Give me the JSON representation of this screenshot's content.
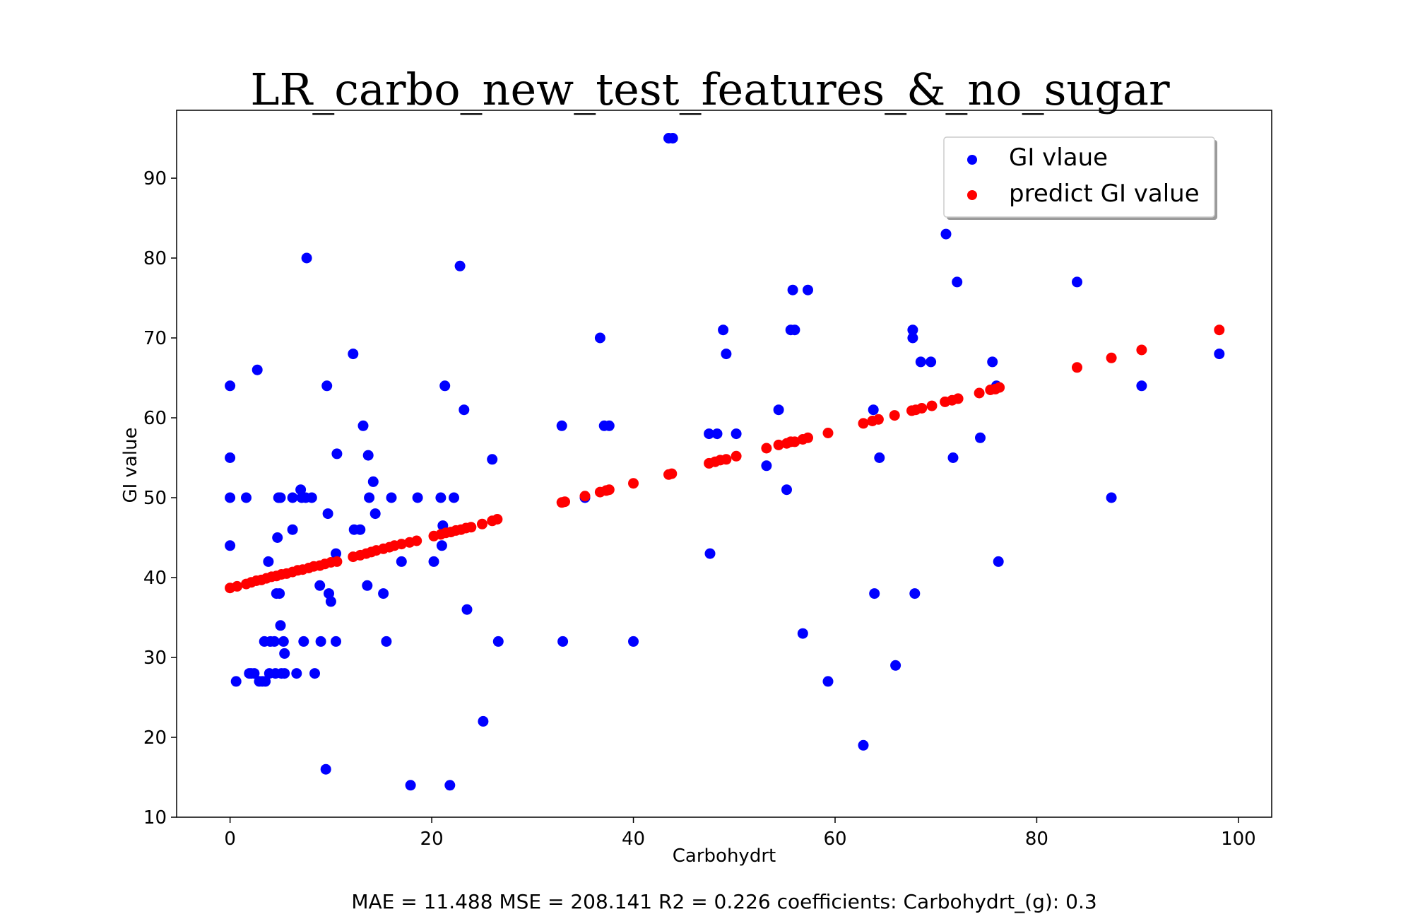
{
  "chart_data": {
    "type": "scatter",
    "title": "LR_carbo_new_test_features_&_no_sugar",
    "xlabel": "Carbohydrt",
    "ylabel": "GI value",
    "xlim": [
      -5.3,
      103.3
    ],
    "ylim": [
      10,
      98.5
    ],
    "xticks": [
      0,
      20,
      40,
      60,
      80,
      100
    ],
    "yticks": [
      10,
      20,
      30,
      40,
      50,
      60,
      70,
      80,
      90
    ],
    "grid": false,
    "legend_position": "top-right",
    "caption": "MAE = 11.488 MSE = 208.141 R2 = 0.226 coefficients: Carbohydrt_(g): 0.3",
    "series": [
      {
        "name": "GI vlaue",
        "color": "#0000ff",
        "points": [
          [
            0,
            64
          ],
          [
            0,
            55
          ],
          [
            0,
            50
          ],
          [
            0,
            44
          ],
          [
            0.6,
            27
          ],
          [
            1.6,
            50
          ],
          [
            1.9,
            28
          ],
          [
            2.1,
            28
          ],
          [
            2.4,
            28
          ],
          [
            2.7,
            66
          ],
          [
            2.9,
            27
          ],
          [
            3.2,
            27
          ],
          [
            3.4,
            32
          ],
          [
            3.5,
            27
          ],
          [
            3.8,
            42
          ],
          [
            3.9,
            28
          ],
          [
            4,
            32
          ],
          [
            4.4,
            32
          ],
          [
            4.5,
            28
          ],
          [
            4.6,
            38
          ],
          [
            4.7,
            45
          ],
          [
            4.8,
            50
          ],
          [
            4.9,
            38
          ],
          [
            5,
            50
          ],
          [
            5.1,
            28
          ],
          [
            5,
            34
          ],
          [
            5.3,
            32
          ],
          [
            5.4,
            30.5
          ],
          [
            5.4,
            28
          ],
          [
            6.2,
            50
          ],
          [
            6.2,
            46
          ],
          [
            6.6,
            28
          ],
          [
            7,
            51
          ],
          [
            7.1,
            50
          ],
          [
            7.3,
            32
          ],
          [
            7.6,
            80
          ],
          [
            7.5,
            50
          ],
          [
            8.1,
            50
          ],
          [
            8.4,
            28
          ],
          [
            8.9,
            39
          ],
          [
            9,
            32
          ],
          [
            9.6,
            64
          ],
          [
            9.5,
            16
          ],
          [
            9.7,
            48
          ],
          [
            9.8,
            38
          ],
          [
            10,
            37
          ],
          [
            10.5,
            43
          ],
          [
            10.6,
            55.5
          ],
          [
            10.5,
            32
          ],
          [
            12.2,
            68
          ],
          [
            12.3,
            46
          ],
          [
            12.9,
            46
          ],
          [
            13.2,
            59
          ],
          [
            13.6,
            39
          ],
          [
            13.7,
            55.3
          ],
          [
            13.8,
            50
          ],
          [
            14.2,
            52
          ],
          [
            14.4,
            48
          ],
          [
            15.2,
            38
          ],
          [
            15.5,
            32
          ],
          [
            16,
            50
          ],
          [
            17,
            42
          ],
          [
            17.9,
            14
          ],
          [
            18.6,
            50
          ],
          [
            20.2,
            42
          ],
          [
            20.9,
            50
          ],
          [
            21,
            44
          ],
          [
            21.1,
            46.5
          ],
          [
            21.3,
            64
          ],
          [
            21.8,
            14
          ],
          [
            22.2,
            50
          ],
          [
            22.8,
            79
          ],
          [
            23.2,
            61
          ],
          [
            23.5,
            36
          ],
          [
            25.1,
            22
          ],
          [
            26,
            54.8
          ],
          [
            26.6,
            32
          ],
          [
            32.9,
            59
          ],
          [
            33,
            32
          ],
          [
            35.2,
            50
          ],
          [
            36.7,
            70
          ],
          [
            37.1,
            59
          ],
          [
            37.6,
            59
          ],
          [
            40,
            32
          ],
          [
            43.5,
            95
          ],
          [
            43.9,
            95
          ],
          [
            47.5,
            58
          ],
          [
            47.6,
            43
          ],
          [
            48.3,
            58
          ],
          [
            48.9,
            71
          ],
          [
            49.2,
            68
          ],
          [
            50.2,
            58
          ],
          [
            53.2,
            54
          ],
          [
            54.4,
            61
          ],
          [
            55.2,
            51
          ],
          [
            55.6,
            71
          ],
          [
            55.8,
            76
          ],
          [
            56,
            71
          ],
          [
            56.8,
            33
          ],
          [
            57.3,
            76
          ],
          [
            59.3,
            27
          ],
          [
            62.8,
            19
          ],
          [
            63.8,
            61
          ],
          [
            63.9,
            38
          ],
          [
            64.4,
            55
          ],
          [
            66,
            29
          ],
          [
            67.7,
            71
          ],
          [
            67.7,
            70
          ],
          [
            67.9,
            38
          ],
          [
            68.5,
            67
          ],
          [
            69.5,
            67
          ],
          [
            71,
            83
          ],
          [
            71.7,
            55
          ],
          [
            72.1,
            77
          ],
          [
            74.4,
            57.5
          ],
          [
            75.6,
            67
          ],
          [
            76,
            64
          ],
          [
            76.2,
            42
          ],
          [
            84,
            77
          ],
          [
            87.4,
            50
          ],
          [
            90.4,
            64
          ],
          [
            98.1,
            68
          ]
        ]
      },
      {
        "name": "predict GI value",
        "color": "#ff0000",
        "points": [
          [
            0,
            38.7
          ],
          [
            0.7,
            38.9
          ],
          [
            1.6,
            39.2
          ],
          [
            2.1,
            39.4
          ],
          [
            2.6,
            39.6
          ],
          [
            3.1,
            39.7
          ],
          [
            3.6,
            39.9
          ],
          [
            4.1,
            40.1
          ],
          [
            4.6,
            40.2
          ],
          [
            5.1,
            40.4
          ],
          [
            5.6,
            40.5
          ],
          [
            6.2,
            40.7
          ],
          [
            6.7,
            40.9
          ],
          [
            7.2,
            41
          ],
          [
            7.8,
            41.2
          ],
          [
            8.3,
            41.4
          ],
          [
            8.9,
            41.5
          ],
          [
            9.4,
            41.7
          ],
          [
            10,
            41.9
          ],
          [
            10.6,
            42
          ],
          [
            12.2,
            42.6
          ],
          [
            12.9,
            42.8
          ],
          [
            13.5,
            43
          ],
          [
            14,
            43.2
          ],
          [
            14.5,
            43.4
          ],
          [
            15.2,
            43.6
          ],
          [
            15.8,
            43.8
          ],
          [
            16.3,
            44
          ],
          [
            17,
            44.2
          ],
          [
            17.8,
            44.4
          ],
          [
            18.5,
            44.6
          ],
          [
            20.2,
            45.2
          ],
          [
            20.9,
            45.4
          ],
          [
            21.4,
            45.6
          ],
          [
            21.9,
            45.7
          ],
          [
            22.4,
            45.9
          ],
          [
            22.9,
            46
          ],
          [
            23.4,
            46.2
          ],
          [
            23.9,
            46.3
          ],
          [
            25,
            46.7
          ],
          [
            26,
            47.1
          ],
          [
            26.5,
            47.3
          ],
          [
            32.9,
            49.4
          ],
          [
            33.2,
            49.5
          ],
          [
            35.2,
            50.2
          ],
          [
            36.7,
            50.7
          ],
          [
            37.3,
            50.9
          ],
          [
            37.6,
            51
          ],
          [
            40,
            51.8
          ],
          [
            43.5,
            52.9
          ],
          [
            43.8,
            53
          ],
          [
            47.5,
            54.3
          ],
          [
            48.1,
            54.5
          ],
          [
            48.6,
            54.7
          ],
          [
            49.2,
            54.8
          ],
          [
            50.2,
            55.2
          ],
          [
            53.2,
            56.2
          ],
          [
            54.4,
            56.6
          ],
          [
            55.2,
            56.8
          ],
          [
            55.6,
            57
          ],
          [
            56,
            57
          ],
          [
            56.8,
            57.3
          ],
          [
            57.3,
            57.5
          ],
          [
            59.3,
            58.1
          ],
          [
            62.8,
            59.3
          ],
          [
            63.7,
            59.6
          ],
          [
            64.3,
            59.8
          ],
          [
            65.9,
            60.3
          ],
          [
            67.6,
            60.9
          ],
          [
            68,
            61
          ],
          [
            68.6,
            61.2
          ],
          [
            69.6,
            61.5
          ],
          [
            70.9,
            62
          ],
          [
            71.6,
            62.2
          ],
          [
            72.2,
            62.4
          ],
          [
            74.3,
            63.1
          ],
          [
            75.4,
            63.5
          ],
          [
            75.9,
            63.6
          ],
          [
            76.3,
            63.8
          ],
          [
            84,
            66.3
          ],
          [
            87.4,
            67.5
          ],
          [
            90.4,
            68.5
          ],
          [
            98.1,
            71
          ]
        ]
      }
    ]
  }
}
